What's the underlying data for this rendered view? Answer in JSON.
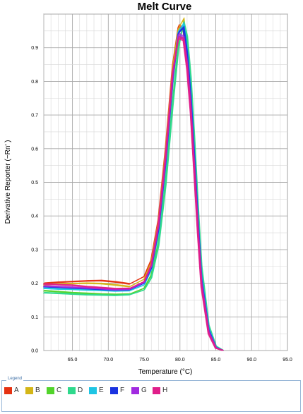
{
  "chart_data": {
    "type": "line",
    "title": "Melt Curve",
    "xlabel": "Temperature (°C)",
    "ylabel": "Derivative Reporter (−Rn′ )",
    "xlim": [
      61,
      95
    ],
    "ylim": [
      0,
      1.0
    ],
    "x_ticks": [
      "65.0",
      "70.0",
      "75.0",
      "80.0",
      "85.0",
      "90.0",
      "95.0"
    ],
    "y_ticks": [
      "0.0",
      "0.1",
      "0.2",
      "0.3",
      "0.4",
      "0.5",
      "0.6",
      "0.7",
      "0.8",
      "0.9"
    ],
    "grid": true,
    "legend_title": "Legend",
    "legend_placement": "bottom",
    "series": [
      {
        "name": "A",
        "color": "#e53212",
        "x": [
          61,
          63,
          65,
          67,
          69,
          71,
          73,
          75,
          76,
          77,
          78,
          79,
          79.8,
          80.5,
          81,
          81.5,
          82,
          82.5,
          83,
          84,
          85,
          86
        ],
        "y": [
          0.2,
          0.203,
          0.205,
          0.207,
          0.208,
          0.204,
          0.198,
          0.22,
          0.27,
          0.39,
          0.6,
          0.85,
          0.965,
          0.955,
          0.86,
          0.72,
          0.54,
          0.36,
          0.2,
          0.055,
          0.008,
          0.0
        ]
      },
      {
        "name": "B",
        "color": "#d4b617",
        "x": [
          61,
          63,
          65,
          67,
          69,
          71,
          73,
          75,
          76,
          77,
          78,
          79,
          79.8,
          80.5,
          81,
          81.5,
          82,
          82.5,
          83,
          84,
          85,
          86
        ],
        "y": [
          0.195,
          0.198,
          0.199,
          0.2,
          0.199,
          0.195,
          0.19,
          0.212,
          0.262,
          0.38,
          0.59,
          0.84,
          0.958,
          0.985,
          0.88,
          0.74,
          0.56,
          0.38,
          0.21,
          0.06,
          0.01,
          0.0
        ]
      },
      {
        "name": "C",
        "color": "#52d42b",
        "x": [
          61,
          63,
          65,
          67,
          69,
          71,
          73,
          75,
          76,
          77,
          78,
          79,
          79.8,
          80.5,
          81,
          81.5,
          82,
          82.5,
          83,
          84,
          85,
          86
        ],
        "y": [
          0.178,
          0.175,
          0.172,
          0.17,
          0.168,
          0.167,
          0.168,
          0.185,
          0.225,
          0.32,
          0.5,
          0.74,
          0.91,
          0.97,
          0.92,
          0.8,
          0.62,
          0.42,
          0.24,
          0.07,
          0.012,
          0.0
        ]
      },
      {
        "name": "D",
        "color": "#2fd98c",
        "x": [
          61,
          63,
          65,
          67,
          69,
          71,
          73,
          75,
          76,
          77,
          78,
          79,
          79.8,
          80.5,
          81,
          81.5,
          82,
          82.5,
          83,
          84,
          85,
          86
        ],
        "y": [
          0.172,
          0.17,
          0.168,
          0.166,
          0.165,
          0.164,
          0.166,
          0.18,
          0.215,
          0.31,
          0.49,
          0.73,
          0.9,
          0.975,
          0.93,
          0.81,
          0.63,
          0.43,
          0.25,
          0.075,
          0.013,
          0.0
        ]
      },
      {
        "name": "E",
        "color": "#1ec5e4",
        "x": [
          61,
          63,
          65,
          67,
          69,
          71,
          73,
          75,
          76,
          77,
          78,
          79,
          79.8,
          80.5,
          81,
          81.5,
          82,
          82.5,
          83,
          84,
          85,
          86
        ],
        "y": [
          0.185,
          0.183,
          0.182,
          0.18,
          0.179,
          0.177,
          0.178,
          0.195,
          0.24,
          0.35,
          0.55,
          0.8,
          0.95,
          0.97,
          0.89,
          0.76,
          0.58,
          0.39,
          0.22,
          0.065,
          0.01,
          0.0
        ]
      },
      {
        "name": "F",
        "color": "#1a33e0",
        "x": [
          61,
          63,
          65,
          67,
          69,
          71,
          73,
          75,
          76,
          77,
          78,
          79,
          79.8,
          80.5,
          81,
          81.5,
          82,
          82.5,
          83,
          84,
          85,
          86
        ],
        "y": [
          0.19,
          0.188,
          0.186,
          0.184,
          0.182,
          0.18,
          0.181,
          0.2,
          0.245,
          0.36,
          0.56,
          0.81,
          0.945,
          0.96,
          0.88,
          0.75,
          0.57,
          0.38,
          0.21,
          0.06,
          0.009,
          0.0
        ]
      },
      {
        "name": "G",
        "color": "#a12be0",
        "x": [
          61,
          63,
          65,
          67,
          69,
          71,
          73,
          75,
          76,
          77,
          78,
          79,
          79.8,
          80.5,
          81,
          81.5,
          82,
          82.5,
          83,
          84,
          85,
          86
        ],
        "y": [
          0.192,
          0.19,
          0.188,
          0.186,
          0.184,
          0.181,
          0.182,
          0.202,
          0.25,
          0.37,
          0.57,
          0.82,
          0.94,
          0.93,
          0.85,
          0.72,
          0.54,
          0.36,
          0.2,
          0.055,
          0.008,
          0.0
        ]
      },
      {
        "name": "H",
        "color": "#e01f8a",
        "x": [
          61,
          63,
          65,
          67,
          69,
          71,
          73,
          75,
          76,
          77,
          78,
          79,
          79.8,
          80.5,
          81,
          81.5,
          82,
          82.5,
          83,
          84,
          85,
          86
        ],
        "y": [
          0.198,
          0.196,
          0.194,
          0.19,
          0.187,
          0.184,
          0.185,
          0.205,
          0.255,
          0.375,
          0.58,
          0.83,
          0.93,
          0.925,
          0.84,
          0.71,
          0.53,
          0.35,
          0.19,
          0.05,
          0.007,
          0.0
        ]
      }
    ]
  }
}
